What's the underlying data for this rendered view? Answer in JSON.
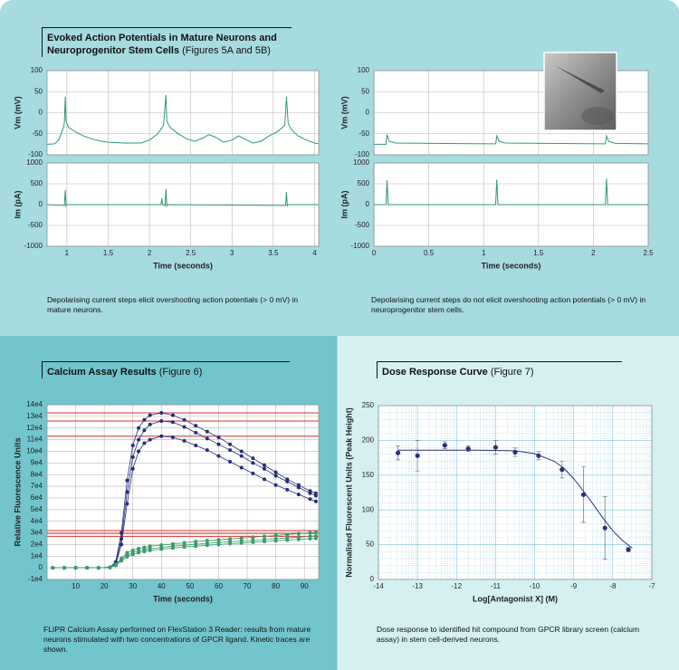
{
  "sections": [
    {
      "title": "Evoked Action Potentials in Mature Neurons and Neuroprogenitor Stem Cells",
      "figure": "(Figures 5A and 5B)"
    },
    {
      "title": "Calcium Assay Results",
      "figure": "(Figure 6)"
    },
    {
      "title": "Dose Response Curve",
      "figure": "(Figure 7)"
    }
  ],
  "captions": [
    "Depolarising current steps elicit overshooting action potentials (> 0 mV) in mature neurons.",
    "Depolarising current steps do not elicit overshooting action potentials (> 0 mV) in neuroprogenitor stem cells.",
    "FLIPR Calcium Assay performed on FlexStation 3 Reader: results from mature neurons stimulated with two concentrations of GPCR ligand. Kinetic traces are shown.",
    "Dose response to identified hit compound from GPCR library screen (calcium assay) in stem cell-derived neurons."
  ],
  "chart_data": [
    {
      "type": "line",
      "ylabel": "Vm (mV)",
      "xlim": [
        0.76,
        4.05
      ],
      "ylim": [
        -100,
        100
      ],
      "yticks": [
        -100,
        -50,
        0,
        50,
        100
      ],
      "grid": true,
      "series": [
        {
          "color": "#2e9a6e",
          "x": [
            0.76,
            0.85,
            0.9,
            0.95,
            0.97,
            0.98,
            0.99,
            1.02,
            1.1,
            1.2,
            1.3,
            1.4,
            1.5,
            1.7,
            1.9,
            2.0,
            2.1,
            2.17,
            2.2,
            2.21,
            2.25,
            2.35,
            2.45,
            2.55,
            2.65,
            2.72,
            2.8,
            2.9,
            3.0,
            3.08,
            3.15,
            3.25,
            3.35,
            3.45,
            3.55,
            3.64,
            3.66,
            3.68,
            3.72,
            3.8,
            3.9,
            4.0,
            4.05
          ],
          "values": [
            -75,
            -74,
            -65,
            -40,
            -25,
            38,
            -20,
            -35,
            -45,
            -55,
            -62,
            -67,
            -70,
            -72,
            -72,
            -65,
            -50,
            -30,
            42,
            -20,
            -35,
            -50,
            -62,
            -68,
            -60,
            -52,
            -58,
            -70,
            -65,
            -55,
            -62,
            -72,
            -68,
            -55,
            -45,
            -30,
            38,
            -25,
            -40,
            -55,
            -65,
            -72,
            -74
          ]
        }
      ]
    },
    {
      "type": "line",
      "ylabel": "Im (pA)",
      "xlabel": "Time (seconds)",
      "xlim": [
        0.76,
        4.05
      ],
      "ylim": [
        -1000,
        1000
      ],
      "yticks": [
        -1000,
        -500,
        0,
        500,
        1000
      ],
      "xticks": [
        1,
        1.5,
        2,
        2.5,
        3,
        3.5,
        4
      ],
      "grid": true,
      "series": [
        {
          "color": "#2e9a6e",
          "x": [
            0.76,
            0.97,
            0.98,
            0.99,
            1.0,
            2.14,
            2.15,
            2.16,
            2.19,
            2.2,
            2.21,
            2.22,
            3.65,
            3.66,
            3.67,
            3.68,
            4.05
          ],
          "values": [
            0,
            -20,
            350,
            -30,
            0,
            0,
            150,
            0,
            -20,
            380,
            -30,
            0,
            -20,
            300,
            -30,
            0,
            0
          ]
        }
      ]
    },
    {
      "type": "line",
      "ylabel": "Vm (mV)",
      "xlim": [
        0,
        2.5
      ],
      "ylim": [
        -100,
        100
      ],
      "yticks": [
        -100,
        -50,
        0,
        50,
        100
      ],
      "grid": true,
      "series": [
        {
          "color": "#2e9a6e",
          "x": [
            0,
            0.11,
            0.12,
            0.14,
            0.2,
            1.11,
            1.12,
            1.14,
            1.2,
            2.11,
            2.12,
            2.14,
            2.2,
            2.5
          ],
          "values": [
            -75,
            -75,
            -52,
            -68,
            -72,
            -74,
            -55,
            -68,
            -72,
            -74,
            -55,
            -68,
            -73,
            -74
          ]
        }
      ]
    },
    {
      "type": "line",
      "ylabel": "Im (pA)",
      "xlabel": "Time (seconds)",
      "xlim": [
        0,
        2.5
      ],
      "ylim": [
        -1000,
        1000
      ],
      "yticks": [
        -1000,
        -500,
        0,
        500,
        1000
      ],
      "xticks": [
        0,
        0.5,
        1,
        1.5,
        2,
        2.5
      ],
      "grid": true,
      "series": [
        {
          "color": "#2e9a6e",
          "x": [
            0,
            0.11,
            0.12,
            0.13,
            1.11,
            1.12,
            1.13,
            2.11,
            2.12,
            2.13,
            2.5
          ],
          "values": [
            0,
            0,
            580,
            0,
            0,
            600,
            0,
            0,
            620,
            0,
            0
          ]
        }
      ]
    },
    {
      "type": "line",
      "ylabel": "Relative Fluorescence Units",
      "xlabel": "Time (seconds)",
      "xlim": [
        0,
        95
      ],
      "ylim": [
        -10000,
        140000
      ],
      "xticks": [
        10,
        20,
        30,
        40,
        50,
        60,
        70,
        80,
        90
      ],
      "yticks": [
        {
          "value": -10000,
          "label": "-1e4"
        },
        0,
        {
          "value": 10000,
          "label": "1e4"
        },
        {
          "value": 20000,
          "label": "2e4"
        },
        {
          "value": 30000,
          "label": "3e4"
        },
        {
          "value": 40000,
          "label": "4e4"
        },
        {
          "value": 50000,
          "label": "5e4"
        },
        {
          "value": 60000,
          "label": "6e4"
        },
        {
          "value": 70000,
          "label": "7e4"
        },
        {
          "value": 80000,
          "label": "8e4"
        },
        {
          "value": 90000,
          "label": "9e4"
        },
        {
          "value": 100000,
          "label": "10e4"
        },
        {
          "value": 110000,
          "label": "11e4"
        },
        {
          "value": 120000,
          "label": "12e4"
        },
        {
          "value": 130000,
          "label": "13e4"
        },
        {
          "value": 140000,
          "label": "14e4"
        }
      ],
      "grid": true,
      "reference_lines": [
        133000,
        126000,
        113000,
        32000,
        29500,
        27000
      ],
      "reference_color": "#e0302a",
      "marker": true,
      "series": [
        {
          "color": "#262c7a",
          "x": [
            2,
            6,
            10,
            14,
            18,
            22,
            24,
            26,
            28,
            30,
            32,
            34,
            36,
            40,
            44,
            48,
            52,
            56,
            60,
            64,
            68,
            72,
            76,
            80,
            84,
            88,
            92,
            94
          ],
          "values": [
            0,
            0,
            0,
            0,
            0,
            500,
            5000,
            30000,
            75000,
            105000,
            120000,
            127000,
            131000,
            133000,
            131000,
            127000,
            122000,
            117000,
            112000,
            106000,
            100000,
            94000,
            88000,
            82000,
            76000,
            71000,
            66000,
            64000
          ]
        },
        {
          "color": "#262c7a",
          "x": [
            2,
            6,
            10,
            14,
            18,
            22,
            24,
            26,
            28,
            30,
            32,
            34,
            36,
            40,
            44,
            48,
            52,
            56,
            60,
            64,
            68,
            72,
            76,
            80,
            84,
            88,
            92,
            94
          ],
          "values": [
            0,
            0,
            0,
            0,
            0,
            400,
            4000,
            25000,
            65000,
            95000,
            110000,
            118000,
            123000,
            126000,
            125000,
            121000,
            116000,
            111000,
            106000,
            101000,
            96000,
            90000,
            85000,
            79000,
            74000,
            69000,
            64000,
            62000
          ]
        },
        {
          "color": "#262c7a",
          "x": [
            2,
            6,
            10,
            14,
            18,
            22,
            24,
            26,
            28,
            30,
            32,
            34,
            36,
            40,
            44,
            48,
            52,
            56,
            60,
            64,
            68,
            72,
            76,
            80,
            84,
            88,
            92,
            94
          ],
          "values": [
            0,
            0,
            0,
            0,
            0,
            300,
            3000,
            20000,
            55000,
            85000,
            100000,
            107000,
            110000,
            113000,
            112000,
            109000,
            105000,
            101000,
            96000,
            91000,
            86000,
            81000,
            76000,
            71000,
            67000,
            63000,
            59000,
            57000
          ]
        },
        {
          "color": "#3a9c6b",
          "x": [
            2,
            6,
            10,
            14,
            18,
            22,
            24,
            26,
            28,
            30,
            32,
            34,
            36,
            40,
            44,
            48,
            52,
            56,
            60,
            64,
            68,
            72,
            76,
            80,
            84,
            88,
            92,
            94
          ],
          "values": [
            0,
            0,
            0,
            0,
            0,
            500,
            3000,
            8000,
            13000,
            15000,
            16500,
            17500,
            18500,
            19500,
            20500,
            21500,
            22500,
            23300,
            24000,
            24800,
            25500,
            26200,
            27000,
            27800,
            28500,
            29300,
            30000,
            30500
          ]
        },
        {
          "color": "#3a9c6b",
          "x": [
            2,
            6,
            10,
            14,
            18,
            22,
            24,
            26,
            28,
            30,
            32,
            34,
            36,
            40,
            44,
            48,
            52,
            56,
            60,
            64,
            68,
            72,
            76,
            80,
            84,
            88,
            92,
            94
          ],
          "values": [
            0,
            0,
            0,
            0,
            0,
            400,
            2500,
            7000,
            11000,
            13000,
            14500,
            15500,
            16500,
            17500,
            18500,
            19400,
            20200,
            21000,
            21700,
            22400,
            23000,
            23700,
            24300,
            25000,
            25600,
            26300,
            27000,
            27300
          ]
        },
        {
          "color": "#3a9c6b",
          "x": [
            2,
            6,
            10,
            14,
            18,
            22,
            24,
            26,
            28,
            30,
            32,
            34,
            36,
            40,
            44,
            48,
            52,
            56,
            60,
            64,
            68,
            72,
            76,
            80,
            84,
            88,
            92,
            94
          ],
          "values": [
            0,
            0,
            0,
            0,
            0,
            300,
            2000,
            6000,
            9500,
            11500,
            13000,
            14000,
            15000,
            16000,
            17000,
            17800,
            18600,
            19300,
            20000,
            20700,
            21300,
            22000,
            22600,
            23200,
            23800,
            24400,
            25000,
            25300
          ]
        }
      ]
    },
    {
      "type": "scatter",
      "ylabel": "Normalised Fluorescent Units (Peak Height)",
      "xlabel": "Log[Antagonist X] (M)",
      "xlim": [
        -14,
        -7
      ],
      "ylim": [
        0,
        250
      ],
      "xticks": [
        -14,
        -13,
        -12,
        -11,
        -10,
        -9,
        -8,
        -7
      ],
      "yticks": [
        0,
        50,
        100,
        150,
        200,
        250
      ],
      "grid": true,
      "minor_grid": true,
      "series": [
        {
          "color": "#2b2f7d",
          "marker": true,
          "line": false,
          "x": [
            -13.5,
            -13,
            -12.3,
            -11.7,
            -11,
            -10.5,
            -9.9,
            -9.3,
            -8.75,
            -8.2,
            -7.6
          ],
          "values": [
            182,
            178,
            193,
            188,
            190,
            183,
            178,
            158,
            122,
            74,
            43
          ],
          "errors": [
            10,
            22,
            5,
            4,
            10,
            6,
            6,
            12,
            40,
            45,
            3
          ]
        },
        {
          "color": "#2b2f7d",
          "x": [
            -13.5,
            -12.5,
            -11.5,
            -10.5,
            -10,
            -9.5,
            -9.25,
            -9,
            -8.75,
            -8.5,
            -8.25,
            -8,
            -7.75,
            -7.5
          ],
          "values": [
            186,
            186,
            186,
            185,
            181,
            170,
            160,
            145,
            127,
            108,
            88,
            70,
            56,
            45
          ]
        }
      ]
    }
  ]
}
